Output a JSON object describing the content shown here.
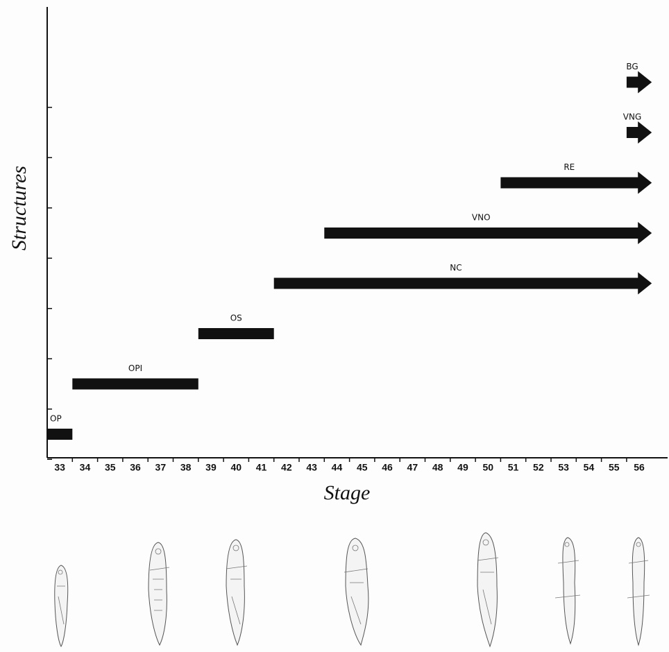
{
  "chart_data": {
    "type": "gantt",
    "x_label": "Stage",
    "y_label": "Structures",
    "categories": [
      33,
      34,
      35,
      36,
      37,
      38,
      39,
      40,
      41,
      42,
      43,
      44,
      45,
      46,
      47,
      48,
      49,
      50,
      51,
      52,
      53,
      54,
      55,
      56
    ],
    "color": "#111111",
    "series": [
      {
        "name": "OP",
        "start": 33,
        "end": 33,
        "arrow": false
      },
      {
        "name": "OPI",
        "start": 34,
        "end": 38,
        "arrow": false
      },
      {
        "name": "OS",
        "start": 39,
        "end": 41,
        "arrow": false
      },
      {
        "name": "NC",
        "start": 42,
        "end": 56,
        "arrow": true
      },
      {
        "name": "VNO",
        "start": 44,
        "end": 56,
        "arrow": true
      },
      {
        "name": "RE",
        "start": 51,
        "end": 56,
        "arrow": true
      },
      {
        "name": "VNG",
        "start": 56,
        "end": 56,
        "arrow": true
      },
      {
        "name": "BG",
        "start": 56,
        "end": 56,
        "arrow": true
      }
    ]
  }
}
